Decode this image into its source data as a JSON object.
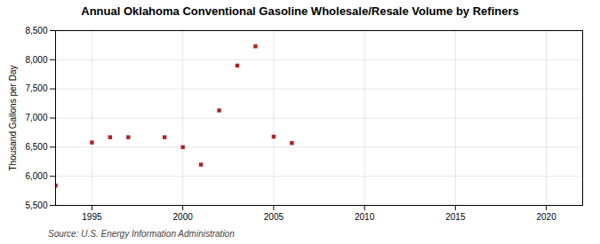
{
  "chart_data": {
    "type": "scatter",
    "title": "Annual Oklahoma Conventional Gasoline Wholesale/Resale Volume by Refiners",
    "ylabel": "Thousand Gallons per Day",
    "source": "Source: U.S. Energy Information Administration",
    "x": [
      1993,
      1995,
      1996,
      1997,
      1999,
      2000,
      2001,
      2002,
      2003,
      2004,
      2005,
      2006
    ],
    "values": [
      5840,
      6580,
      6670,
      6670,
      6670,
      6500,
      6200,
      7130,
      7900,
      8230,
      6680,
      6570
    ],
    "color": "#b22222",
    "marker": "square",
    "xlim": [
      1993,
      2022
    ],
    "ylim": [
      5500,
      8500
    ],
    "xticks": [
      1995,
      2000,
      2005,
      2010,
      2015,
      2020
    ],
    "yticks": [
      {
        "value": 5500,
        "label": "5,500"
      },
      {
        "value": 6000,
        "label": "6,000"
      },
      {
        "value": 6500,
        "label": "6,500"
      },
      {
        "value": 7000,
        "label": "7,000"
      },
      {
        "value": 7500,
        "label": "7,500"
      },
      {
        "value": 8000,
        "label": "8,000"
      },
      {
        "value": 8500,
        "label": "8,500"
      }
    ],
    "grid": true
  }
}
